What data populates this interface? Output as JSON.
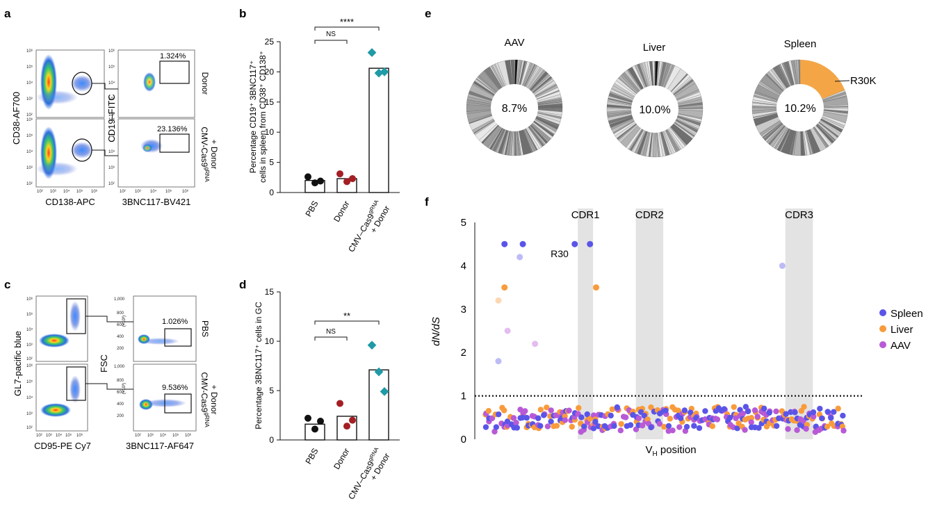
{
  "panels": {
    "a": "a",
    "b": "b",
    "c": "c",
    "d": "d",
    "e": "e",
    "f": "f"
  },
  "colors": {
    "black": "#111111",
    "red": "#a31f24",
    "teal": "#1f9aa6",
    "orange": "#f4a646",
    "spleen": "#5a55e8",
    "liver": "#f99b3c",
    "aav": "#b85ad6",
    "cdr_band": "#e3e3e3",
    "donut_base": "#bdbdbd"
  },
  "flow_a": {
    "left_y": "CD38-AF700",
    "left_x": "CD138-APC",
    "right_y": "CD19–FITC",
    "right_x": "3BNC117-BV421",
    "top_pct": "1.324%",
    "bottom_pct": "23.136%",
    "row1_label": "Donor",
    "row2_label_main": "CMV-Cas9",
    "row2_label_sup": "gRNA",
    "row2_label_line2": "+ Donor",
    "ticks": [
      "10²",
      "10³",
      "10⁴",
      "10⁵",
      "10⁶"
    ]
  },
  "flow_c": {
    "left_y": "GL7-pacific blue",
    "left_x": "CD95-PE Cy7",
    "right_y": "FSC",
    "right_x": "3BNC117-AF647",
    "scale_note": "(×10³)",
    "fsc_ticks": [
      "1,000",
      "800",
      "600",
      "400",
      "200"
    ],
    "top_pct": "1.026%",
    "bottom_pct": "9.536%",
    "row1_label": "PBS",
    "row2_label_main": "CMV-Cas9",
    "row2_label_sup": "gRNA",
    "row2_label_line2": "+ Donor",
    "ticks": [
      "10²",
      "10³",
      "10⁴",
      "10⁵",
      "10⁶"
    ]
  },
  "chart_data": [
    {
      "id": "b",
      "type": "bar",
      "ylabel_line1": "Percentage CD19⁺ 3BNC117⁺",
      "ylabel_line2": "cells in spleen from CD38⁺ CD138⁺",
      "categories": [
        "PBS",
        "Donor",
        "CMV–Cas9"
      ],
      "category_sup": "gRNA",
      "category_line2": "+ Donor",
      "bar_values": [
        2.0,
        2.3,
        20.6
      ],
      "points": [
        [
          2.6,
          1.6,
          1.9
        ],
        [
          3.1,
          1.8,
          2.3
        ],
        [
          23.2,
          19.8,
          20.0
        ]
      ],
      "point_colors": [
        "black",
        "red",
        "teal"
      ],
      "yticks": [
        0,
        5,
        10,
        15,
        20,
        25
      ],
      "ylim": [
        0,
        25
      ],
      "sig_inner": "NS",
      "sig_outer": "****"
    },
    {
      "id": "d",
      "type": "bar",
      "ylabel": "Percentage 3BNC117⁺ cells in GC",
      "categories": [
        "PBS",
        "Donor",
        "CMV–Cas9"
      ],
      "category_sup": "gRNA",
      "category_line2": "+ Donor",
      "bar_values": [
        1.6,
        2.4,
        7.1
      ],
      "points": [
        [
          2.2,
          1.1,
          1.9
        ],
        [
          3.7,
          1.4,
          2.0
        ],
        [
          9.6,
          6.9,
          4.9
        ]
      ],
      "point_colors": [
        "black",
        "red",
        "teal"
      ],
      "yticks": [
        0,
        5,
        10,
        15
      ],
      "ylim": [
        0,
        15
      ],
      "sig_inner": "NS",
      "sig_outer": "**"
    },
    {
      "id": "e",
      "type": "pie",
      "donuts": [
        {
          "title": "AAV",
          "center": "8.7%"
        },
        {
          "title": "Liver",
          "center": "10.0%"
        },
        {
          "title": "Spleen",
          "center": "10.2%",
          "callout": "R30K",
          "highlight_fraction": 0.19
        }
      ]
    },
    {
      "id": "f",
      "type": "scatter",
      "ylabel": "dN/dS",
      "xlabel_main": "V",
      "xlabel_sub": "H",
      "xlabel_rest": " position",
      "yticks": [
        0,
        1,
        2,
        3,
        4,
        5
      ],
      "ylim": [
        0,
        5
      ],
      "xlim": [
        0,
        120
      ],
      "threshold": 1,
      "regions": [
        {
          "name": "CDR1",
          "start": 31,
          "end": 36
        },
        {
          "name": "CDR2",
          "start": 50,
          "end": 59
        },
        {
          "name": "CDR3",
          "start": 99,
          "end": 108
        }
      ],
      "annotation": {
        "text": "R30",
        "x": 30,
        "y": 4.5
      },
      "legend": [
        "Spleen",
        "Liver",
        "AAV"
      ],
      "high_points": [
        {
          "s": "spleen",
          "x": 7,
          "y": 4.5
        },
        {
          "s": "spleen",
          "x": 13,
          "y": 4.5
        },
        {
          "s": "spleen",
          "x": 30,
          "y": 4.5
        },
        {
          "s": "spleen",
          "x": 35,
          "y": 4.5
        },
        {
          "s": "liver",
          "x": 7,
          "y": 3.5
        },
        {
          "s": "liver",
          "x": 37,
          "y": 3.5
        },
        {
          "s": "spleen",
          "x": 12,
          "y": 4.2,
          "faint": true
        },
        {
          "s": "spleen",
          "x": 98,
          "y": 4.0,
          "faint": true
        },
        {
          "s": "liver",
          "x": 5,
          "y": 3.2,
          "faint": true
        },
        {
          "s": "aav",
          "x": 8,
          "y": 2.5,
          "faint": true
        },
        {
          "s": "aav",
          "x": 17,
          "y": 2.2,
          "faint": true
        },
        {
          "s": "spleen",
          "x": 5,
          "y": 1.8,
          "faint": true
        }
      ]
    }
  ]
}
